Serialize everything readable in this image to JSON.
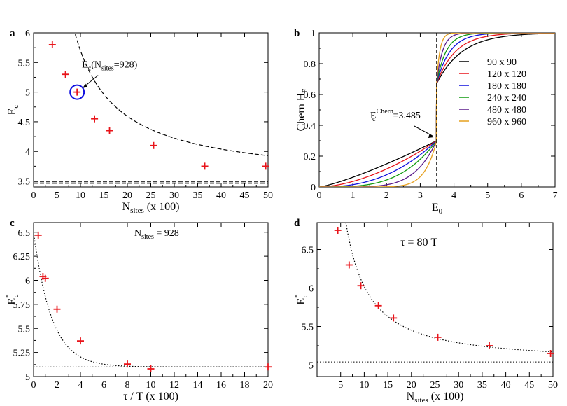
{
  "figure": {
    "panel_labels": [
      "a",
      "b",
      "c",
      "d"
    ]
  },
  "chart_data": [
    {
      "id": "a",
      "type": "scatter",
      "xlabel_main": "N",
      "xlabel_sub": "sites",
      "xlabel_tail": " (x 100)",
      "ylabel_main": "E",
      "ylabel_sub": "c",
      "xlim": [
        0,
        50
      ],
      "ylim": [
        3.4,
        6
      ],
      "xticks": [
        0,
        5,
        10,
        15,
        20,
        25,
        30,
        35,
        40,
        45,
        50
      ],
      "xtick_labels": [
        "0",
        "5",
        "10",
        "15",
        "20",
        "25",
        "30",
        "35",
        "40",
        "45",
        "50"
      ],
      "yticks": [
        3.5,
        4,
        4.5,
        5,
        5.5,
        6
      ],
      "ytick_labels": [
        "3.5",
        "4",
        "4.5",
        "5",
        "5.5",
        "6"
      ],
      "points": [
        {
          "x": 4,
          "y": 5.8
        },
        {
          "x": 6.8,
          "y": 5.3
        },
        {
          "x": 9.28,
          "y": 5.0
        },
        {
          "x": 13,
          "y": 4.55
        },
        {
          "x": 16.2,
          "y": 4.35
        },
        {
          "x": 25.6,
          "y": 4.1
        },
        {
          "x": 36.5,
          "y": 3.75
        },
        {
          "x": 49.5,
          "y": 3.75
        }
      ],
      "fit": {
        "style": "dashed",
        "a": 3.485,
        "b": 22.16,
        "p": 1.0
      },
      "asymptote": {
        "style": "dashed",
        "y": [
          3.485,
          3.46
        ]
      },
      "highlight": {
        "x": 9.28,
        "y": 5.0
      },
      "annotation": {
        "main": "E",
        "sub1": "c",
        "mid": "(N",
        "sub2": "sites",
        "tail": "=928)"
      },
      "marker_color": "#e8141a"
    },
    {
      "id": "b",
      "type": "line",
      "xlabel_main": "E",
      "xlabel_sub": "0",
      "ylabel_main": "Chern H",
      "ylabel_sub": "F",
      "xlim": [
        0,
        7
      ],
      "ylim": [
        0,
        1
      ],
      "xticks": [
        0,
        1,
        2,
        3,
        4,
        5,
        6,
        7
      ],
      "xtick_labels": [
        "0",
        "1",
        "2",
        "3",
        "4",
        "5",
        "6",
        "7"
      ],
      "yticks": [
        0,
        0.2,
        0.4,
        0.6,
        0.8,
        1
      ],
      "ytick_labels": [
        "0",
        "0.2",
        "0.4",
        "0.6",
        "0.8",
        "1"
      ],
      "transition_x": 3.485,
      "series": [
        {
          "name": "90 x 90",
          "color": "#000000",
          "alpha": 1.25
        },
        {
          "name": "120 x 120",
          "color": "#e8141a",
          "alpha": 1.7
        },
        {
          "name": "180 x 180",
          "color": "#1111dd",
          "alpha": 2.4
        },
        {
          "name": "240 x 240",
          "color": "#0f9a0f",
          "alpha": 3.4
        },
        {
          "name": "480 x 480",
          "color": "#5a1a8a",
          "alpha": 5.5
        },
        {
          "name": "960 x 960",
          "color": "#e6a01e",
          "alpha": 10
        }
      ],
      "annotation": {
        "main": "E",
        "sup": "Chern",
        "sub": "c",
        "tail": "=3.485"
      }
    },
    {
      "id": "c",
      "type": "scatter",
      "xlabel": "τ / T  (x 100)",
      "ylabel_main": "E",
      "ylabel_sup": "*",
      "ylabel_sub": "c",
      "xlim": [
        0,
        20
      ],
      "ylim": [
        5,
        6.6
      ],
      "xticks": [
        0,
        2,
        4,
        6,
        8,
        10,
        12,
        14,
        16,
        18,
        20
      ],
      "xtick_labels": [
        "0",
        "2",
        "4",
        "6",
        "8",
        "10",
        "12",
        "14",
        "16",
        "18",
        "20"
      ],
      "yticks": [
        5,
        5.25,
        5.5,
        5.75,
        6,
        6.25,
        6.5
      ],
      "ytick_labels": [
        "5",
        "5.25",
        "5.5",
        "5.75",
        "6",
        "6.25",
        "6.5"
      ],
      "points": [
        {
          "x": 0.4,
          "y": 6.47
        },
        {
          "x": 0.8,
          "y": 6.04
        },
        {
          "x": 1.0,
          "y": 6.02
        },
        {
          "x": 2.0,
          "y": 5.7
        },
        {
          "x": 4.0,
          "y": 5.37
        },
        {
          "x": 8.0,
          "y": 5.13
        },
        {
          "x": 10.0,
          "y": 5.08
        },
        {
          "x": 20.0,
          "y": 5.1
        }
      ],
      "fit": {
        "style": "dotted",
        "a": 5.1,
        "b": 1.4,
        "k": 0.65
      },
      "asymptote": {
        "style": "dotted",
        "y": [
          5.1
        ]
      },
      "annotation": {
        "main": "N",
        "sub": "sites",
        "tail": " = 928"
      },
      "marker_color": "#e8141a"
    },
    {
      "id": "d",
      "type": "scatter",
      "xlabel_main": "N",
      "xlabel_sub": "sites",
      "xlabel_tail": " (x 100)",
      "ylabel_main": "E",
      "ylabel_sup": "*",
      "ylabel_sub": "c",
      "xlim": [
        0,
        50
      ],
      "ylim": [
        4.85,
        6.85
      ],
      "xticks": [
        5,
        10,
        15,
        20,
        25,
        30,
        35,
        40,
        45,
        50
      ],
      "xtick_labels": [
        "5",
        "10",
        "15",
        "20",
        "25",
        "30",
        "35",
        "40",
        "45",
        "50"
      ],
      "yticks": [
        5,
        5.5,
        6,
        6.5
      ],
      "ytick_labels": [
        "5",
        "5.5",
        "6",
        "6.5"
      ],
      "points": [
        {
          "x": 4.4,
          "y": 6.75
        },
        {
          "x": 6.8,
          "y": 6.3
        },
        {
          "x": 9.28,
          "y": 6.03
        },
        {
          "x": 13,
          "y": 5.77
        },
        {
          "x": 16.2,
          "y": 5.61
        },
        {
          "x": 25.6,
          "y": 5.36
        },
        {
          "x": 36.5,
          "y": 5.25
        },
        {
          "x": 49.5,
          "y": 5.15
        }
      ],
      "fit": {
        "style": "dotted",
        "a": 5.04,
        "b": 17.4,
        "p": 1.25
      },
      "asymptote": {
        "style": "dotted",
        "y": [
          5.04
        ]
      },
      "annotation": {
        "text": "τ = 80  T"
      },
      "marker_color": "#e8141a"
    }
  ]
}
